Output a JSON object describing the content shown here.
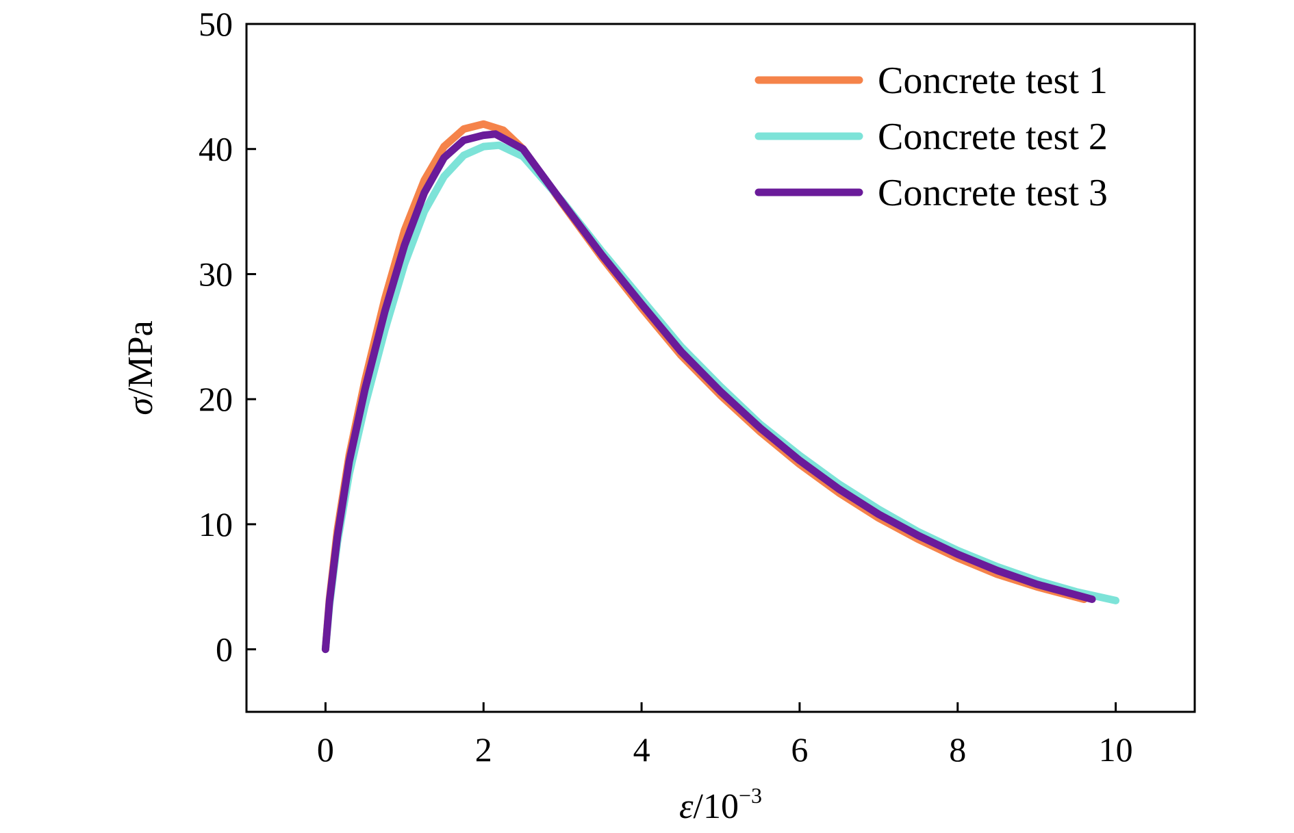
{
  "chart_data": {
    "type": "line",
    "title": "",
    "xlabel_symbol": "ε",
    "xlabel_unit": "/10",
    "xlabel_exponent": "−3",
    "ylabel_symbol": "σ",
    "ylabel_unit": "/MPa",
    "xlim": [
      -1,
      11
    ],
    "ylim": [
      -5,
      50
    ],
    "xticks": [
      0,
      2,
      4,
      6,
      8,
      10
    ],
    "yticks": [
      0,
      10,
      20,
      30,
      40,
      50
    ],
    "grid": false,
    "legend_position": "top-right",
    "series": [
      {
        "name": "Concrete test 1",
        "color": "#f5834a",
        "x": [
          0,
          0.05,
          0.15,
          0.3,
          0.5,
          0.75,
          1.0,
          1.25,
          1.5,
          1.75,
          2.0,
          2.25,
          2.5,
          3.0,
          3.5,
          4.0,
          4.5,
          5.0,
          5.5,
          6.0,
          6.5,
          7.0,
          7.5,
          8.0,
          8.5,
          9.0,
          9.6
        ],
        "y": [
          0,
          4.0,
          9.5,
          15.5,
          21.5,
          28.0,
          33.5,
          37.5,
          40.2,
          41.6,
          42.0,
          41.5,
          40.0,
          35.6,
          31.3,
          27.3,
          23.5,
          20.3,
          17.4,
          14.8,
          12.5,
          10.5,
          8.8,
          7.3,
          6.0,
          5.0,
          4.0
        ]
      },
      {
        "name": "Concrete test 2",
        "color": "#7de3d8",
        "x": [
          0,
          0.05,
          0.15,
          0.3,
          0.5,
          0.75,
          1.0,
          1.25,
          1.5,
          1.75,
          2.0,
          2.2,
          2.5,
          3.0,
          3.5,
          4.0,
          4.5,
          5.0,
          5.5,
          6.0,
          6.5,
          7.0,
          7.5,
          8.0,
          8.5,
          9.0,
          9.5,
          10.0
        ],
        "y": [
          0,
          3.5,
          8.5,
          14.0,
          19.5,
          25.5,
          30.8,
          35.0,
          37.8,
          39.5,
          40.2,
          40.3,
          39.4,
          35.8,
          31.8,
          28.0,
          24.2,
          21.0,
          18.0,
          15.5,
          13.2,
          11.2,
          9.4,
          7.9,
          6.6,
          5.5,
          4.6,
          3.9
        ]
      },
      {
        "name": "Concrete test 3",
        "color": "#6a1b9a",
        "x": [
          0,
          0.05,
          0.15,
          0.3,
          0.5,
          0.75,
          1.0,
          1.25,
          1.5,
          1.75,
          2.0,
          2.15,
          2.5,
          3.0,
          3.5,
          4.0,
          4.5,
          5.0,
          5.5,
          6.0,
          6.5,
          7.0,
          7.5,
          8.0,
          8.5,
          9.0,
          9.7
        ],
        "y": [
          0,
          3.8,
          9.0,
          15.0,
          20.8,
          27.0,
          32.3,
          36.5,
          39.3,
          40.7,
          41.1,
          41.2,
          40.0,
          35.7,
          31.5,
          27.6,
          23.8,
          20.6,
          17.7,
          15.1,
          12.8,
          10.8,
          9.1,
          7.6,
          6.3,
          5.2,
          4.0
        ]
      }
    ]
  }
}
